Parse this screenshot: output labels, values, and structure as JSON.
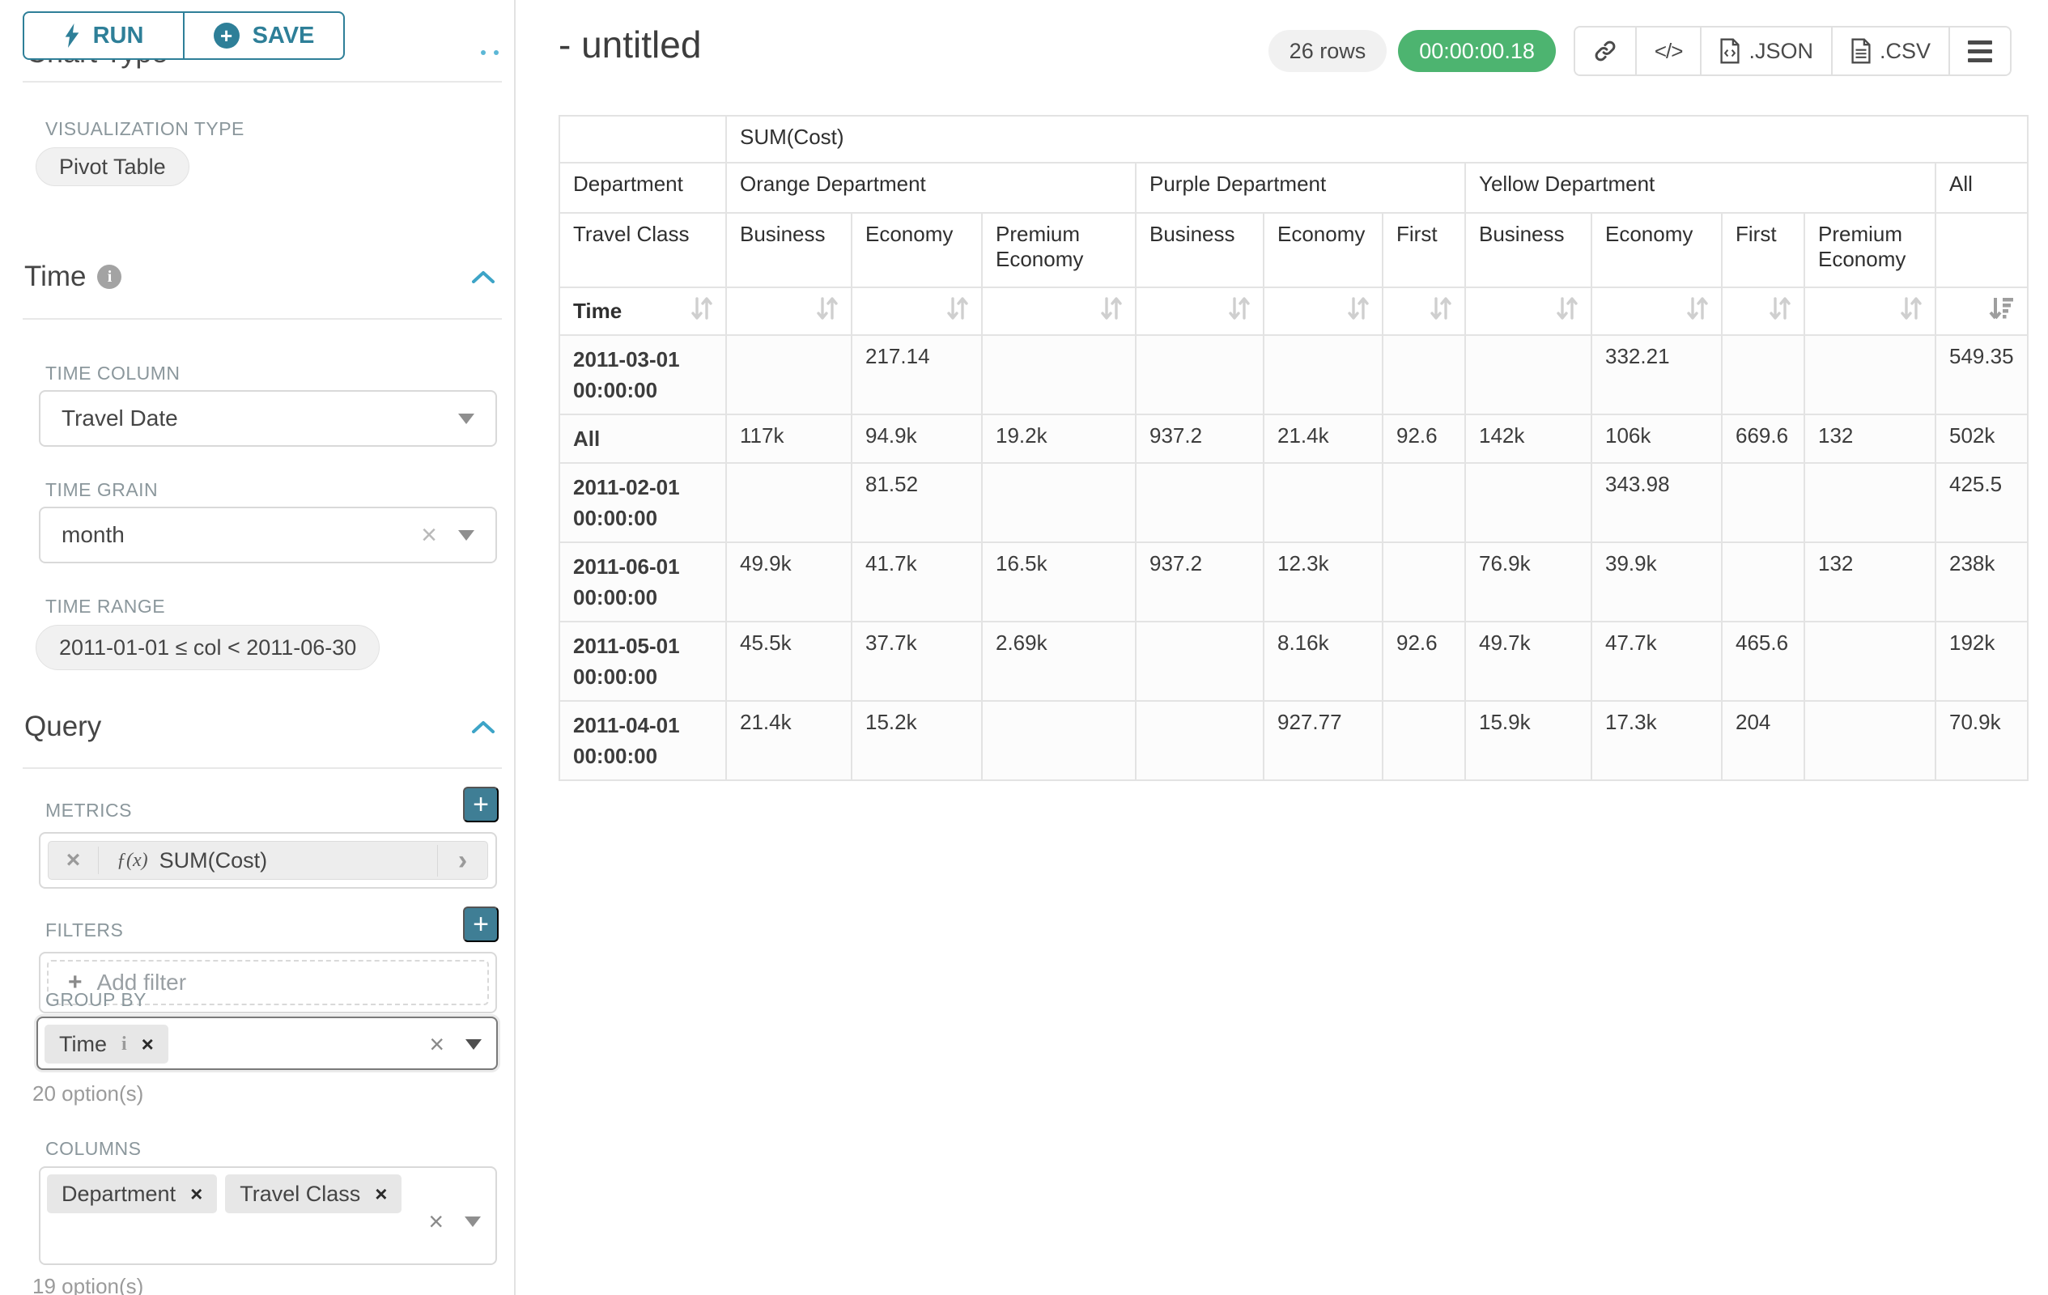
{
  "colors": {
    "accent": "#2e7f98",
    "accent_fill": "#3f7e95",
    "success_badge": "#4db470"
  },
  "sidebar": {
    "run_label": "RUN",
    "save_label": "SAVE",
    "chart_type_heading": "Chart Type",
    "viz_type_label": "VISUALIZATION TYPE",
    "viz_type_value": "Pivot Table",
    "time_section_title": "Time",
    "time_column_label": "TIME COLUMN",
    "time_column_value": "Travel Date",
    "time_grain_label": "TIME GRAIN",
    "time_grain_value": "month",
    "time_range_label": "TIME RANGE",
    "time_range_value": "2011-01-01 ≤ col < 2011-06-30",
    "query_section_title": "Query",
    "metrics_label": "METRICS",
    "metric_fx": "ƒ(x)",
    "metric_value": "SUM(Cost)",
    "filters_label": "FILTERS",
    "add_filter_label": "Add filter",
    "group_by_label": "GROUP BY",
    "group_by_chips": [
      {
        "label": "Time",
        "has_info": true
      }
    ],
    "group_by_options_note": "20 option(s)",
    "columns_label": "COLUMNS",
    "columns_chips": [
      {
        "label": "Department",
        "has_info": false
      },
      {
        "label": "Travel Class",
        "has_info": false
      }
    ],
    "columns_options_note": "19 option(s)"
  },
  "header": {
    "title": "- untitled",
    "rows_badge": "26 rows",
    "timer_badge": "00:00:00.18",
    "export_json_label": ".JSON",
    "export_csv_label": ".CSV"
  },
  "pivot": {
    "metric_header": "SUM(Cost)",
    "department_label": "Department",
    "travel_class_label": "Travel Class",
    "time_label": "Time",
    "sort": {
      "column": "All",
      "direction": "desc"
    },
    "groups": [
      {
        "name": "Orange Department",
        "cols": [
          "Business",
          "Economy",
          "Premium Economy"
        ]
      },
      {
        "name": "Purple Department",
        "cols": [
          "Business",
          "Economy",
          "First"
        ]
      },
      {
        "name": "Yellow Department",
        "cols": [
          "Business",
          "Economy",
          "First",
          "Premium Economy"
        ]
      },
      {
        "name": "All",
        "cols": [
          ""
        ]
      }
    ],
    "rows": [
      {
        "label": "2011-03-01 00:00:00",
        "values": [
          "",
          "217.14",
          "",
          "",
          "",
          "",
          "",
          "332.21",
          "",
          "",
          "549.35"
        ]
      },
      {
        "label": "All",
        "values": [
          "117k",
          "94.9k",
          "19.2k",
          "937.2",
          "21.4k",
          "92.6",
          "142k",
          "106k",
          "669.6",
          "132",
          "502k"
        ]
      },
      {
        "label": "2011-02-01 00:00:00",
        "values": [
          "",
          "81.52",
          "",
          "",
          "",
          "",
          "",
          "343.98",
          "",
          "",
          "425.5"
        ]
      },
      {
        "label": "2011-06-01 00:00:00",
        "values": [
          "49.9k",
          "41.7k",
          "16.5k",
          "937.2",
          "12.3k",
          "",
          "76.9k",
          "39.9k",
          "",
          "132",
          "238k"
        ]
      },
      {
        "label": "2011-05-01 00:00:00",
        "values": [
          "45.5k",
          "37.7k",
          "2.69k",
          "",
          "8.16k",
          "92.6",
          "49.7k",
          "47.7k",
          "465.6",
          "",
          "192k"
        ]
      },
      {
        "label": "2011-04-01 00:00:00",
        "values": [
          "21.4k",
          "15.2k",
          "",
          "",
          "927.77",
          "",
          "15.9k",
          "17.3k",
          "204",
          "",
          "70.9k"
        ]
      }
    ]
  }
}
